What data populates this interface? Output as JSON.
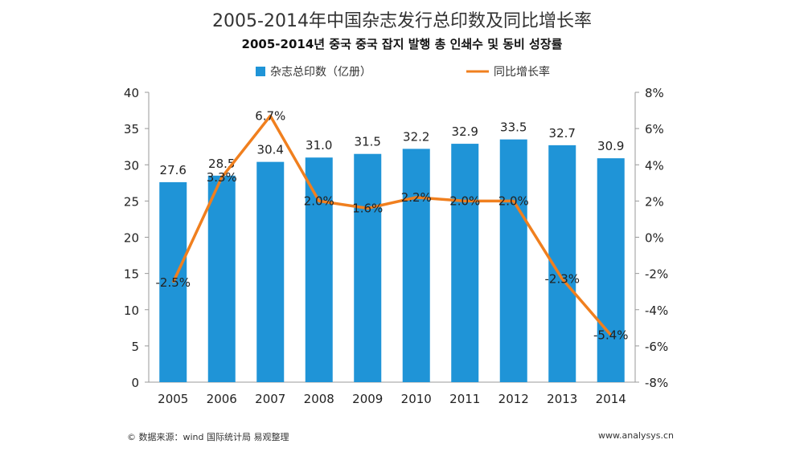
{
  "chart_data": {
    "type": "bar+line",
    "title": "2005-2014年中国杂志发行总印数及同比增长率",
    "subtitle": "2005-2014년 중국 중국 잡지 발행 총 인쇄수 및 동비 성장률",
    "categories": [
      "2005",
      "2006",
      "2007",
      "2008",
      "2009",
      "2010",
      "2011",
      "2012",
      "2013",
      "2014"
    ],
    "series": [
      {
        "name": "杂志总印数（亿册）",
        "type": "bar",
        "axis": "left",
        "color": "#1f94d7",
        "values": [
          27.6,
          28.5,
          30.4,
          31.0,
          31.5,
          32.2,
          32.9,
          33.5,
          32.7,
          30.9
        ],
        "labels": [
          "27.6",
          "28.5",
          "30.4",
          "31.0",
          "31.5",
          "32.2",
          "32.9",
          "33.5",
          "32.7",
          "30.9"
        ]
      },
      {
        "name": "同比增长率",
        "type": "line",
        "axis": "right",
        "color": "#f07f1e",
        "values": [
          -2.5,
          3.3,
          6.7,
          2.0,
          1.6,
          2.2,
          2.0,
          2.0,
          -2.3,
          -5.4
        ],
        "labels": [
          "-2.5%",
          "3.3%",
          "6.7%",
          "2.0%",
          "1.6%",
          "2.2%",
          "2.0%",
          "2.0%",
          "-2.3%",
          "-5.4%"
        ]
      }
    ],
    "y_left": {
      "min": 0,
      "max": 40,
      "ticks": [
        "0",
        "5",
        "10",
        "15",
        "20",
        "25",
        "30",
        "35",
        "40"
      ]
    },
    "y_right": {
      "min": -8,
      "max": 8,
      "ticks": [
        "-8%",
        "-6%",
        "-4%",
        "-2%",
        "0%",
        "2%",
        "4%",
        "6%",
        "8%"
      ]
    },
    "legend_position": "top",
    "grid": false
  },
  "footer": {
    "source": "© 数据来源：wind 国际统计局 易观整理",
    "site": "www.analysys.cn"
  }
}
